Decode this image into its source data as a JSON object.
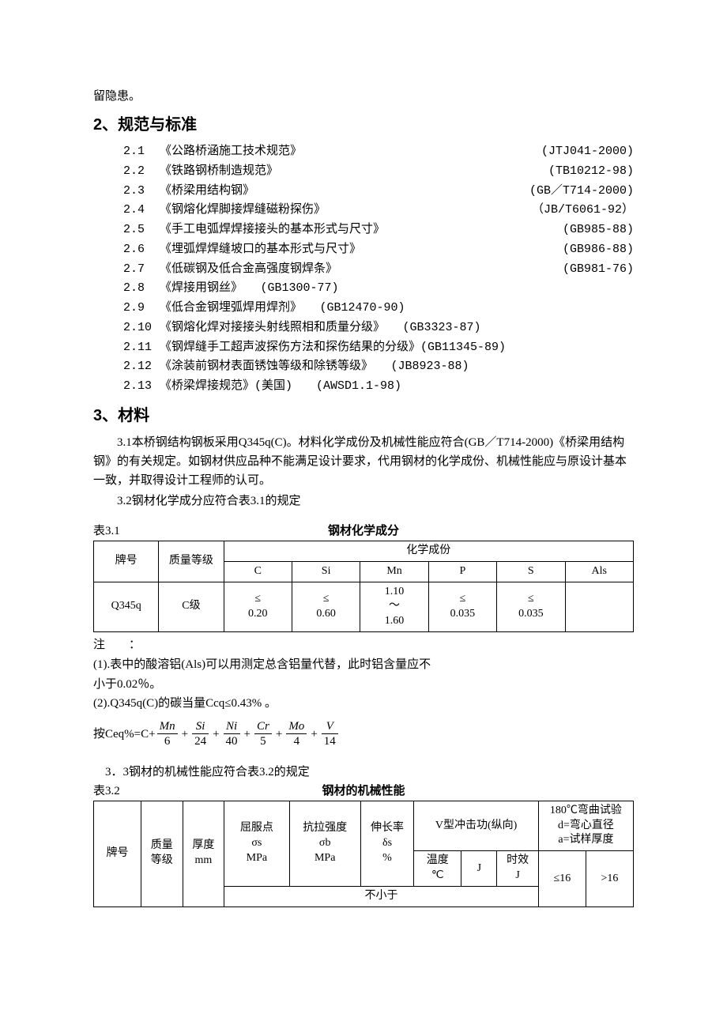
{
  "topLine": "留隐患。",
  "section2": {
    "title": "2、规范与标准"
  },
  "standards": [
    {
      "idx": "2.1",
      "title": "《公路桥涵施工技术规范》",
      "code": "(JTJ041-2000)"
    },
    {
      "idx": "2.2",
      "title": "《铁路钢桥制造规范》",
      "code": "(TB10212-98)"
    },
    {
      "idx": "2.3",
      "title": "《桥梁用结构钢》",
      "code": "(GB／T714-2000)"
    },
    {
      "idx": "2.4",
      "title": "《钢熔化焊脚接焊缝磁粉探伤》",
      "code": "（JB/T6061-92）"
    },
    {
      "idx": "2.5",
      "title": "《手工电弧焊焊接接头的基本形式与尺寸》",
      "code": "(GB985-88)"
    },
    {
      "idx": "2.6",
      "title": "《埋弧焊焊缝坡口的基本形式与尺寸》",
      "code": "(GB986-88)"
    },
    {
      "idx": "2.7",
      "title": "《低碳钢及低合金高强度钢焊条》",
      "code": "(GB981-76)"
    },
    {
      "idx": "2.8",
      "title": "《焊接用钢丝》　　(GB1300-77)",
      "code": ""
    },
    {
      "idx": "2.9",
      "title": "《低合金钢埋弧焊用焊剂》　　(GB12470-90)",
      "code": ""
    },
    {
      "idx": "2.10",
      "title": "《钢熔化焊对接接头射线照相和质量分级》　　(GB3323-87)",
      "code": ""
    },
    {
      "idx": "2.11",
      "title": "《钢焊缝手工超声波探伤方法和探伤结果的分级》(GB11345-89)",
      "code": ""
    },
    {
      "idx": "2.12",
      "title": "《涂装前钢材表面锈蚀等级和除锈等级》　　(JB8923-88)",
      "code": ""
    },
    {
      "idx": "2.13",
      "title": "《桥梁焊接规范》(美国)　　(AWSD1.1-98)",
      "code": ""
    }
  ],
  "section3": {
    "title": "3、材料"
  },
  "para31": "3.1本桥钢结构钢板采用Q345q(C)。材料化学成份及机械性能应符合(GB／T714-2000)《桥梁用结构钢》的有关规定。如钢材供应品种不能满足设计要求，代用钢材的化学成份、机械性能应与原设计基本一致，并取得设计工程师的认可。",
  "para32": "3.2钢材化学成分应符合表3.1的规定",
  "table31": {
    "captionLeft": "表3.1",
    "captionCenter": "钢材化学成分",
    "headers": {
      "grade": "牌号",
      "quality": "质量等级",
      "chem": "化学成份",
      "cols": [
        "C",
        "Si",
        "Mn",
        "P",
        "S",
        "Als"
      ]
    },
    "row": {
      "grade": "Q345q",
      "quality": "C级",
      "values": [
        "≤\n0.20",
        "≤\n0.60",
        "1.10\n～\n1.60",
        "≤\n0.035",
        "≤\n0.035",
        ""
      ]
    }
  },
  "notes": {
    "lead": "注　　：",
    "n1a": "(1).表中的酸溶铝(Als)可以用测定总含铝量代替，此时铝含量应不",
    "n1b": "小于0.02％。",
    "n2": "(2).Q345q(C)的碳当量Ccq≤0.43% 。"
  },
  "formula": {
    "lead": "按Ceq%=C+",
    "terms": [
      {
        "num": "Mn",
        "den": "6"
      },
      {
        "num": "Si",
        "den": "24"
      },
      {
        "num": "Ni",
        "den": "40"
      },
      {
        "num": "Cr",
        "den": "5"
      },
      {
        "num": "Mo",
        "den": "4"
      },
      {
        "num": "V",
        "den": "14"
      }
    ]
  },
  "para33": "3．3钢材的机械性能应符合表3.2的规定",
  "table32": {
    "captionLeft": "表3.2",
    "captionCenter": "钢材的机械性能",
    "headers": {
      "grade": "牌号",
      "quality": "质量\n等级",
      "thickness": "厚度\nmm",
      "yield": "屈服点\nσs\nMPa",
      "tensile": "抗拉强度\nσb\nMPa",
      "elong": "伸长率\nδs\n%",
      "impactGroup": "V型冲击功(纵向)",
      "temp": "温度\n℃",
      "j": "J",
      "aging": "时效\nJ",
      "bendGroup": "180℃弯曲试验\nd=弯心直径\na=试样厚度",
      "le16": "≤16",
      "gt16": ">16",
      "notLess": "不小于"
    }
  }
}
